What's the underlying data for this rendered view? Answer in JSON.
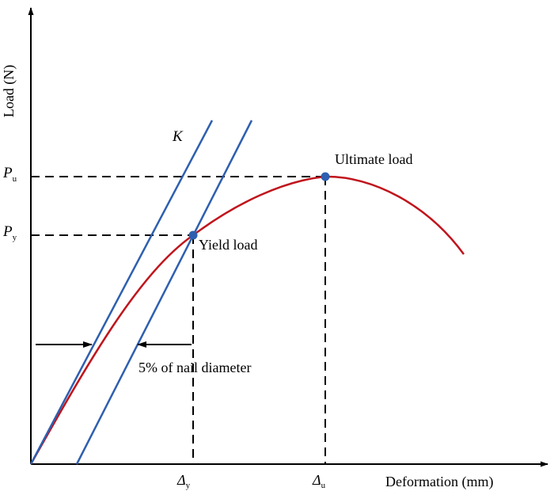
{
  "axes": {
    "y_label": "Load (N)",
    "x_label": "Deformation (mm)"
  },
  "labels": {
    "stiffness": "K",
    "ultimate_load": "Ultimate load",
    "yield_load": "Yield load",
    "offset_note": "5% of nail diameter",
    "pu_main": "P",
    "pu_sub": "u",
    "py_main": "P",
    "py_sub": "y",
    "dy_main": "Δ",
    "dy_sub": "y",
    "du_main": "Δ",
    "du_sub": "u"
  },
  "colors": {
    "curve": "#c0141c",
    "lines": "#2e5fb0",
    "points": "#2e5fb0",
    "axes": "#000000"
  }
}
